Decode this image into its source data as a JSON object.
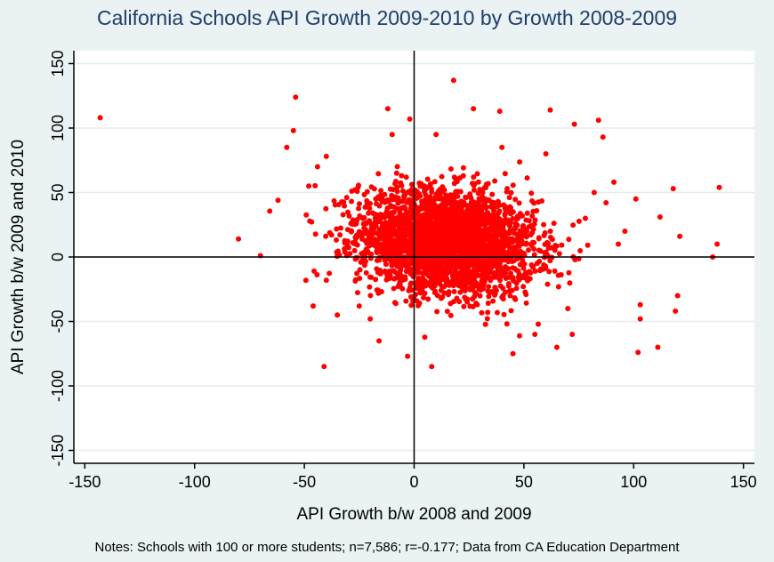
{
  "chart_data": {
    "type": "scatter",
    "title": "California Schools API Growth 2009-2010 by Growth 2008-2009",
    "xlabel": "API Growth b/w 2008 and 2009",
    "ylabel": "API Growth b/w 2009 and 2010",
    "note": "Notes: Schools with 100 or more students; n=7,586; r=-0.177; Data from CA Education Department",
    "xlim": [
      -155,
      155
    ],
    "ylim": [
      -160,
      160
    ],
    "xticks": [
      -150,
      -100,
      -50,
      0,
      50,
      100,
      150
    ],
    "yticks": [
      -150,
      -100,
      -50,
      0,
      50,
      100,
      150
    ],
    "grid": "horizontal",
    "marker_color": "#ff0000",
    "cluster": {
      "n": 7586,
      "r": -0.177,
      "x_center": 15,
      "y_center": 12,
      "x_sd": 20,
      "y_sd": 20
    },
    "outliers": [
      [
        -143,
        108
      ],
      [
        -80,
        14
      ],
      [
        -70,
        1
      ],
      [
        -54,
        124
      ],
      [
        -55,
        98
      ],
      [
        -58,
        85
      ],
      [
        -62,
        44
      ],
      [
        -41,
        -85
      ],
      [
        -46,
        -38
      ],
      [
        -12,
        115
      ],
      [
        -3,
        -77
      ],
      [
        8,
        -85
      ],
      [
        18,
        137
      ],
      [
        27,
        115
      ],
      [
        39,
        113
      ],
      [
        62,
        114
      ],
      [
        73,
        103
      ],
      [
        84,
        106
      ],
      [
        86,
        93
      ],
      [
        101,
        45
      ],
      [
        111,
        -70
      ],
      [
        102,
        -74
      ],
      [
        112,
        31
      ],
      [
        118,
        53
      ],
      [
        121,
        16
      ],
      [
        119,
        -42
      ],
      [
        120,
        -30
      ],
      [
        136,
        0
      ],
      [
        138,
        10
      ],
      [
        139,
        54
      ],
      [
        103,
        -37
      ],
      [
        103,
        -48
      ],
      [
        96,
        20
      ],
      [
        93,
        10
      ],
      [
        91,
        58
      ],
      [
        -2,
        107
      ],
      [
        -40,
        -18
      ],
      [
        -35,
        -45
      ],
      [
        65,
        -70
      ],
      [
        72,
        -60
      ],
      [
        55,
        -60
      ],
      [
        45,
        -75
      ],
      [
        -20,
        -48
      ],
      [
        -25,
        -38
      ],
      [
        -48,
        55
      ],
      [
        -44,
        70
      ],
      [
        -40,
        78
      ],
      [
        78,
        30
      ],
      [
        82,
        50
      ],
      [
        70,
        -40
      ],
      [
        -10,
        95
      ],
      [
        10,
        95
      ],
      [
        40,
        85
      ],
      [
        60,
        80
      ]
    ]
  }
}
